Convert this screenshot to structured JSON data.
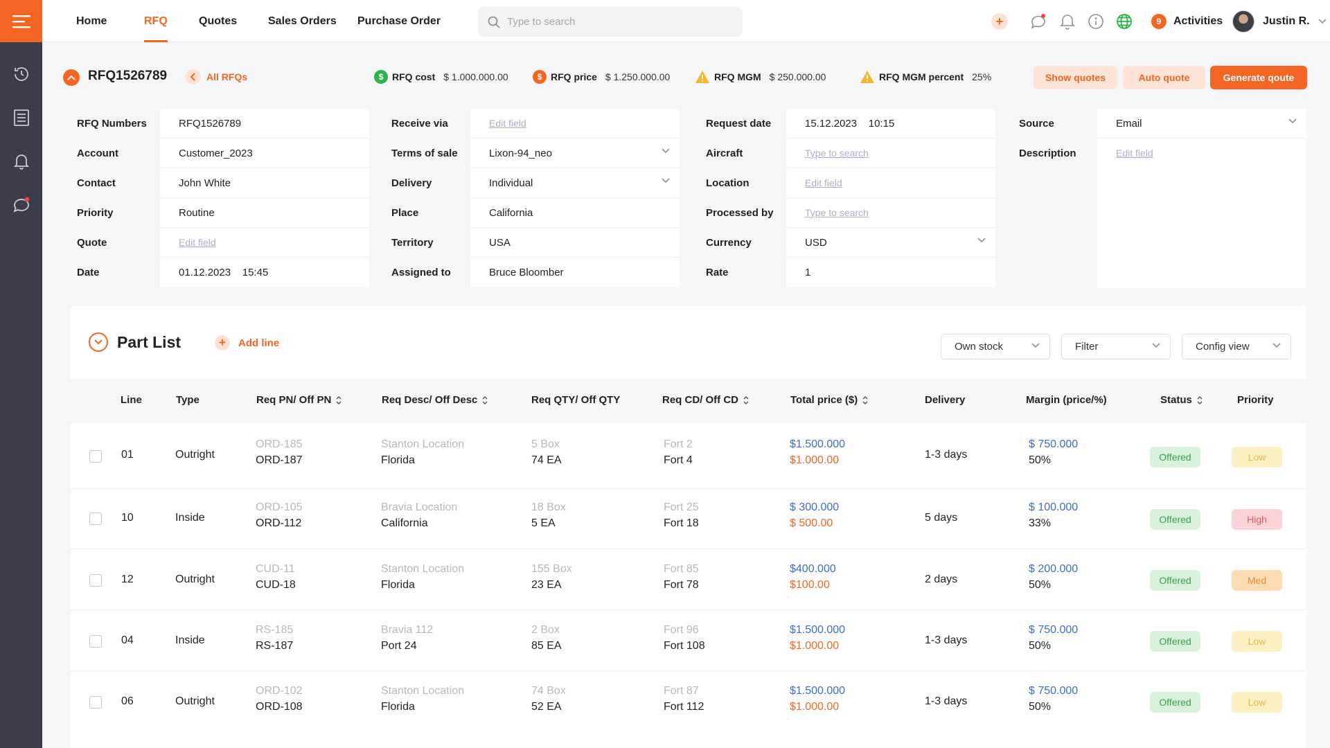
{
  "nav": {
    "items": [
      {
        "label": "Home",
        "active": false
      },
      {
        "label": "RFQ",
        "active": true
      },
      {
        "label": "Quotes",
        "active": false
      },
      {
        "label": "Sales Orders",
        "active": false
      },
      {
        "label": "Purchase Order",
        "active": false
      }
    ],
    "search_placeholder": "Type to search",
    "activities_label": "Activities",
    "activities_count": "9",
    "user_name": "Justin R."
  },
  "sidebar": {
    "icons": [
      "history-icon",
      "list-icon",
      "bell-icon",
      "chat-icon"
    ]
  },
  "header": {
    "rfq_id": "RFQ1526789",
    "back_label": "All RFQs",
    "metrics": [
      {
        "label": "RFQ cost",
        "value": "$ 1.000.000.00",
        "icon": "dollar-icon"
      },
      {
        "label": "RFQ price",
        "value": "$ 1.250.000.00",
        "icon": "dollar-icon"
      },
      {
        "label": "RFQ MGM",
        "value": "$ 250.000.00",
        "icon": "warning-icon"
      },
      {
        "label": "RFQ MGM percent",
        "value": "25%",
        "icon": "warning-icon"
      }
    ],
    "show_quotes": "Show quotes",
    "auto_quote": "Auto quote",
    "generate_quote": "Generate qoute"
  },
  "form": {
    "col1": {
      "labels": [
        "RFQ Numbers",
        "Account",
        "Contact",
        "Priority",
        "Quote",
        "Date"
      ],
      "values": [
        "RFQ1526789",
        "Customer_2023",
        "John White",
        "Routine",
        "Edit field",
        "01.12.2023    15:45"
      ]
    },
    "col2": {
      "labels": [
        "Receive via",
        "Terms of sale",
        "Delivery",
        "Place",
        "Territory",
        "Assigned to"
      ],
      "values": [
        "Edit field",
        "Lixon-94_neo",
        "Individual",
        "California",
        "USA",
        "Bruce Bloomber"
      ]
    },
    "col3": {
      "labels": [
        "Request date",
        "Aircraft",
        "Location",
        "Processed by",
        "Currency",
        "Rate"
      ],
      "values": [
        "15.12.2023    10:15",
        "Type to search",
        "Edit field",
        "Type to search",
        "USD",
        "1"
      ]
    },
    "col4": {
      "labels": [
        "Source",
        "Description"
      ],
      "values": [
        "Email",
        "Edit field"
      ]
    }
  },
  "part_list": {
    "title": "Part List",
    "add_line": "Add line",
    "dropdowns": [
      "Own stock",
      "Filter",
      "Config view"
    ],
    "columns": [
      "Line",
      "Type",
      "Req PN/ Off PN",
      "Req Desc/ Off Desc",
      "Req QTY/ Off QTY",
      "Req CD/ Off CD",
      "Total price ($)",
      "Delivery",
      "Margin (price/%)",
      "Status",
      "Priority"
    ],
    "rows": [
      {
        "line": "01",
        "type": "Outright",
        "pn_req": "ORD-185",
        "pn_off": "ORD-187",
        "desc_req": "Stanton Location",
        "desc_off": "Florida",
        "qty_req": "5 Box",
        "qty_off": "74 EA",
        "cd_req": "Fort 2",
        "cd_off": "Fort 4",
        "price_req": "$1.500.000",
        "price_off": "$1.000.00",
        "delivery": "1-3 days",
        "margin_price": "$ 750.000",
        "margin_pct": "50%",
        "status": "Offered",
        "priority": "Low"
      },
      {
        "line": "10",
        "type": "Inside",
        "pn_req": "ORD-105",
        "pn_off": "ORD-112",
        "desc_req": "Bravia Location",
        "desc_off": "California",
        "qty_req": "18 Box",
        "qty_off": "5 EA",
        "cd_req": "Fort 25",
        "cd_off": "Fort 18",
        "price_req": "$ 300.000",
        "price_off": "$ 500.00",
        "delivery": "5 days",
        "margin_price": "$ 100.000",
        "margin_pct": "33%",
        "status": "Offered",
        "priority": "High"
      },
      {
        "line": "12",
        "type": "Outright",
        "pn_req": "CUD-11",
        "pn_off": "CUD-18",
        "desc_req": "Stanton Location",
        "desc_off": "Florida",
        "qty_req": "155 Box",
        "qty_off": "23 EA",
        "cd_req": "Fort 85",
        "cd_off": "Fort 78",
        "price_req": "$400.000",
        "price_off": "$100.00",
        "delivery": "2 days",
        "margin_price": "$ 200.000",
        "margin_pct": "50%",
        "status": "Offered",
        "priority": "Med"
      },
      {
        "line": "04",
        "type": "Inside",
        "pn_req": "RS-185",
        "pn_off": "RS-187",
        "desc_req": "Bravia 112",
        "desc_off": "Port 24",
        "qty_req": "2 Box",
        "qty_off": "85 EA",
        "cd_req": "Fort 96",
        "cd_off": "Fort 108",
        "price_req": "$1.500.000",
        "price_off": "$1.000.00",
        "delivery": "1-3 days",
        "margin_price": "$ 750.000",
        "margin_pct": "50%",
        "status": "Offered",
        "priority": "Low"
      },
      {
        "line": "06",
        "type": "Outright",
        "pn_req": "ORD-102",
        "pn_off": "ORD-108",
        "desc_req": "Stanton Location",
        "desc_off": "Florida",
        "qty_req": "74 Box",
        "qty_off": "52 EA",
        "cd_req": "Fort 87",
        "cd_off": "Fort 112",
        "price_req": "$1.500.000",
        "price_off": "$1.000.00",
        "delivery": "1-3 days",
        "margin_price": "$ 750.000",
        "margin_pct": "50%",
        "status": "Offered",
        "priority": "Low"
      }
    ]
  },
  "colors": {
    "accent": "#f26522",
    "sidebar": "#3a3d4a",
    "price_blue": "#3d6bcf"
  }
}
